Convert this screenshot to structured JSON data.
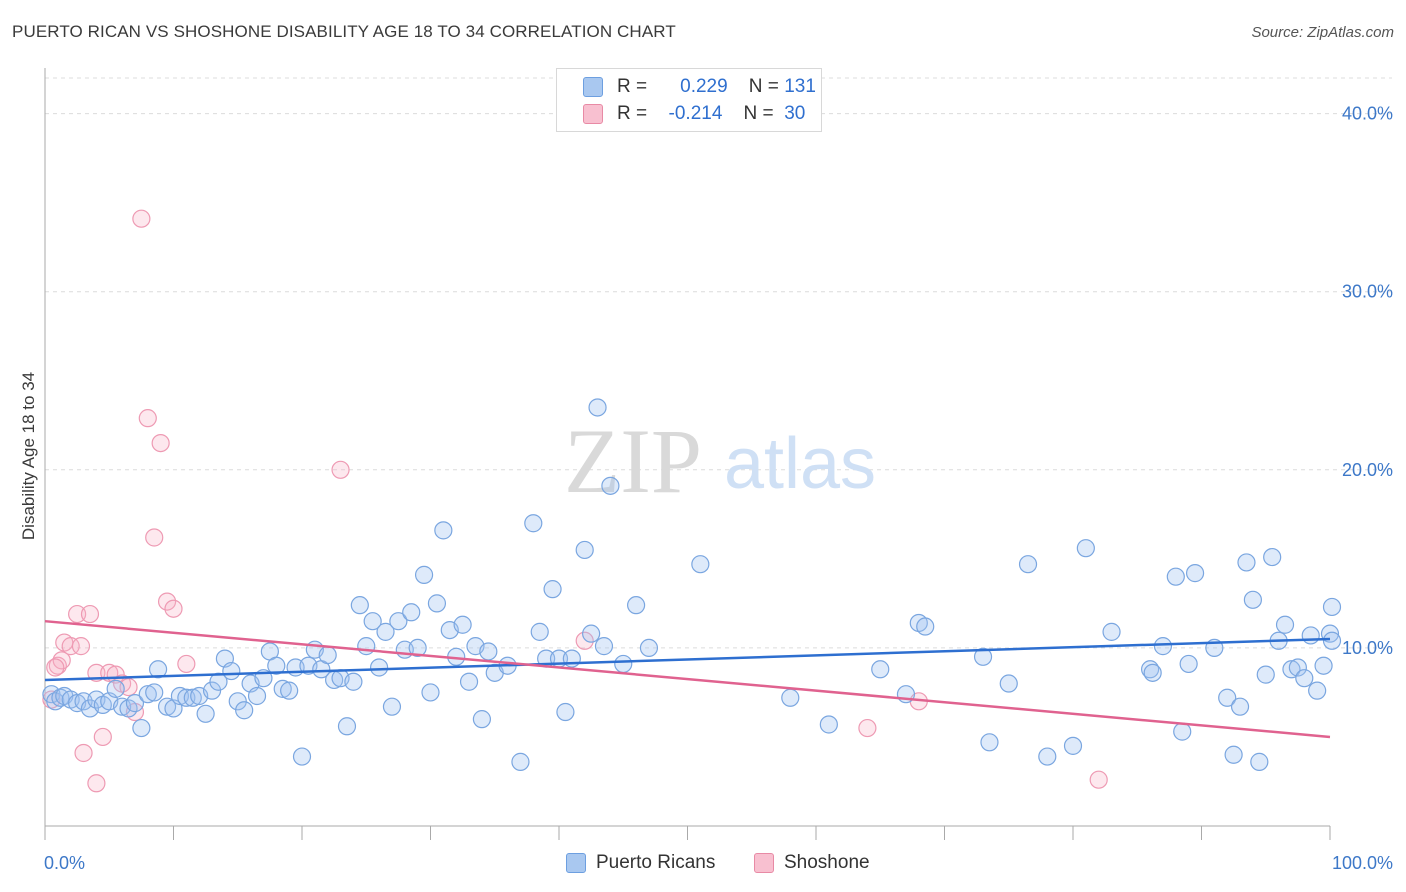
{
  "title": "PUERTO RICAN VS SHOSHONE DISABILITY AGE 18 TO 34 CORRELATION CHART",
  "source": "Source: ZipAtlas.com",
  "watermark": {
    "zip": "ZIP",
    "atlas": "atlas"
  },
  "legend": {
    "r_label": "R =",
    "n_label": "N =",
    "rows": [
      {
        "r": "0.229",
        "n": "131",
        "color": "#a9c8f0",
        "border": "#6d9fe0"
      },
      {
        "r": "-0.214",
        "n": "30",
        "color": "#f8c0d0",
        "border": "#e88aa5"
      }
    ]
  },
  "colors": {
    "blue_fill": "rgba(160,195,240,0.35)",
    "blue_stroke": "#7aa6e0",
    "blue_line": "#2e6fd0",
    "pink_fill": "rgba(248,180,200,0.30)",
    "pink_stroke": "#ee9ab3",
    "pink_line": "#e0628f",
    "grid": "#dcdcdc",
    "tick_text": "#3d78c8"
  },
  "chart_data": {
    "type": "scatter",
    "title": "PUERTO RICAN VS SHOSHONE DISABILITY AGE 18 TO 34 CORRELATION CHART",
    "xlabel": "",
    "ylabel": "Disability Age 18 to 34",
    "xlim": [
      0,
      100
    ],
    "ylim": [
      0,
      42
    ],
    "x_tick_labels": [
      "0.0%",
      "100.0%"
    ],
    "y_ticks": [
      10,
      20,
      30,
      40
    ],
    "y_tick_labels": [
      "10.0%",
      "20.0%",
      "30.0%",
      "40.0%"
    ],
    "grid": true,
    "legend_position": "bottom",
    "series": [
      {
        "name": "Puerto Ricans",
        "trend": {
          "x": [
            0,
            100
          ],
          "y": [
            8.2,
            10.5
          ]
        },
        "points": [
          [
            0.5,
            7.4
          ],
          [
            0.8,
            7.0
          ],
          [
            1.2,
            7.2
          ],
          [
            1.5,
            7.3
          ],
          [
            2,
            7.1
          ],
          [
            2.5,
            6.9
          ],
          [
            3,
            7.0
          ],
          [
            3.5,
            6.6
          ],
          [
            4,
            7.1
          ],
          [
            4.5,
            6.8
          ],
          [
            5,
            7.0
          ],
          [
            5.5,
            7.7
          ],
          [
            6,
            6.7
          ],
          [
            6.5,
            6.6
          ],
          [
            7,
            6.9
          ],
          [
            7.5,
            5.5
          ],
          [
            8,
            7.4
          ],
          [
            8.5,
            7.5
          ],
          [
            8.8,
            8.8
          ],
          [
            9.5,
            6.7
          ],
          [
            10,
            6.6
          ],
          [
            10.5,
            7.3
          ],
          [
            11,
            7.2
          ],
          [
            11.5,
            7.2
          ],
          [
            12,
            7.3
          ],
          [
            12.5,
            6.3
          ],
          [
            13,
            7.6
          ],
          [
            13.5,
            8.1
          ],
          [
            14,
            9.4
          ],
          [
            14.5,
            8.7
          ],
          [
            15,
            7.0
          ],
          [
            15.5,
            6.5
          ],
          [
            16,
            8.0
          ],
          [
            16.5,
            7.3
          ],
          [
            17,
            8.3
          ],
          [
            17.5,
            9.8
          ],
          [
            18,
            9.0
          ],
          [
            18.5,
            7.7
          ],
          [
            19,
            7.6
          ],
          [
            19.5,
            8.9
          ],
          [
            20,
            3.9
          ],
          [
            20.5,
            9.0
          ],
          [
            21,
            9.9
          ],
          [
            21.5,
            8.8
          ],
          [
            22,
            9.6
          ],
          [
            22.5,
            8.2
          ],
          [
            23,
            8.3
          ],
          [
            23.5,
            5.6
          ],
          [
            24,
            8.1
          ],
          [
            24.5,
            12.4
          ],
          [
            25,
            10.1
          ],
          [
            25.5,
            11.5
          ],
          [
            26,
            8.9
          ],
          [
            26.5,
            10.9
          ],
          [
            27,
            6.7
          ],
          [
            27.5,
            11.5
          ],
          [
            28,
            9.9
          ],
          [
            28.5,
            12.0
          ],
          [
            29,
            10.0
          ],
          [
            29.5,
            14.1
          ],
          [
            30,
            7.5
          ],
          [
            30.5,
            12.5
          ],
          [
            31,
            16.6
          ],
          [
            31.5,
            11.0
          ],
          [
            32,
            9.5
          ],
          [
            32.5,
            11.3
          ],
          [
            33,
            8.1
          ],
          [
            33.5,
            10.1
          ],
          [
            34,
            6.0
          ],
          [
            34.5,
            9.8
          ],
          [
            35,
            8.6
          ],
          [
            36,
            9.0
          ],
          [
            37,
            3.6
          ],
          [
            38,
            17.0
          ],
          [
            38.5,
            10.9
          ],
          [
            39,
            9.4
          ],
          [
            39.5,
            13.3
          ],
          [
            40,
            9.4
          ],
          [
            40.5,
            6.4
          ],
          [
            41,
            9.4
          ],
          [
            42,
            15.5
          ],
          [
            42.5,
            10.8
          ],
          [
            43,
            23.5
          ],
          [
            43.5,
            10.1
          ],
          [
            44,
            19.1
          ],
          [
            45,
            9.1
          ],
          [
            46,
            12.4
          ],
          [
            47,
            10.0
          ],
          [
            51,
            14.7
          ],
          [
            58,
            7.2
          ],
          [
            61,
            5.7
          ],
          [
            65,
            8.8
          ],
          [
            67,
            7.4
          ],
          [
            68,
            11.4
          ],
          [
            68.5,
            11.2
          ],
          [
            73,
            9.5
          ],
          [
            73.5,
            4.7
          ],
          [
            75,
            8.0
          ],
          [
            76.5,
            14.7
          ],
          [
            78,
            3.9
          ],
          [
            80,
            4.5
          ],
          [
            81,
            15.6
          ],
          [
            83,
            10.9
          ],
          [
            86,
            8.8
          ],
          [
            86.2,
            8.6
          ],
          [
            87,
            10.1
          ],
          [
            88,
            14.0
          ],
          [
            88.5,
            5.3
          ],
          [
            89,
            9.1
          ],
          [
            89.5,
            14.2
          ],
          [
            91,
            10.0
          ],
          [
            92,
            7.2
          ],
          [
            92.5,
            4.0
          ],
          [
            93,
            6.7
          ],
          [
            93.5,
            14.8
          ],
          [
            94,
            12.7
          ],
          [
            94.5,
            3.6
          ],
          [
            95,
            8.5
          ],
          [
            95.5,
            15.1
          ],
          [
            96,
            10.4
          ],
          [
            96.5,
            11.3
          ],
          [
            97,
            8.8
          ],
          [
            97.5,
            8.9
          ],
          [
            98,
            8.3
          ],
          [
            98.5,
            10.7
          ],
          [
            99,
            7.6
          ],
          [
            99.5,
            9.0
          ],
          [
            100,
            10.8
          ],
          [
            100.5,
            10.4
          ],
          [
            101,
            12.3
          ]
        ]
      },
      {
        "name": "Shoshone",
        "trend": {
          "x": [
            0,
            100
          ],
          "y": [
            11.5,
            5.0
          ]
        },
        "points": [
          [
            0.5,
            7.1
          ],
          [
            1,
            9.0
          ],
          [
            1.5,
            10.3
          ],
          [
            2,
            10.1
          ],
          [
            2.5,
            11.9
          ],
          [
            2.8,
            10.1
          ],
          [
            3,
            4.1
          ],
          [
            3.5,
            11.9
          ],
          [
            4,
            8.6
          ],
          [
            4,
            2.4
          ],
          [
            4.5,
            5.0
          ],
          [
            5,
            8.6
          ],
          [
            5.5,
            8.5
          ],
          [
            6,
            8.0
          ],
          [
            6.5,
            7.8
          ],
          [
            7,
            6.4
          ],
          [
            7.5,
            34.1
          ],
          [
            8,
            22.9
          ],
          [
            8.5,
            16.2
          ],
          [
            9,
            21.5
          ],
          [
            9.5,
            12.6
          ],
          [
            10,
            12.2
          ],
          [
            11,
            9.1
          ],
          [
            23,
            20.0
          ],
          [
            42,
            10.4
          ],
          [
            64,
            5.5
          ],
          [
            68,
            7.0
          ],
          [
            82,
            2.6
          ],
          [
            1.3,
            9.3
          ],
          [
            0.8,
            8.9
          ]
        ]
      }
    ]
  }
}
